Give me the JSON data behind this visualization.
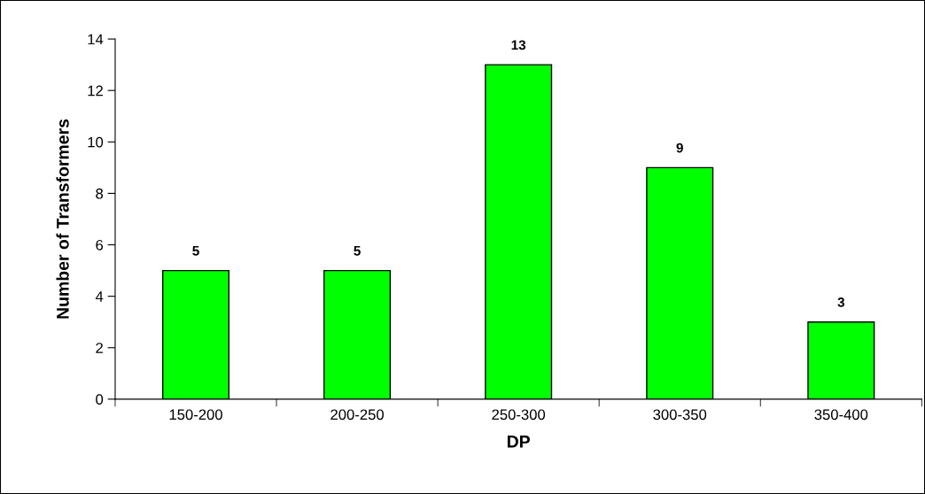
{
  "chart_data": {
    "type": "bar",
    "xlabel": "DP",
    "ylabel": "Number of Transformers",
    "categories": [
      "150-200",
      "200-250",
      "250-300",
      "300-350",
      "350-400"
    ],
    "values": [
      5,
      5,
      13,
      9,
      3
    ],
    "color": "#00ff00",
    "ylim": [
      0,
      14
    ],
    "yticks": [
      0,
      2,
      4,
      6,
      8,
      10,
      12,
      14
    ],
    "grid": false,
    "data_labels": true
  }
}
